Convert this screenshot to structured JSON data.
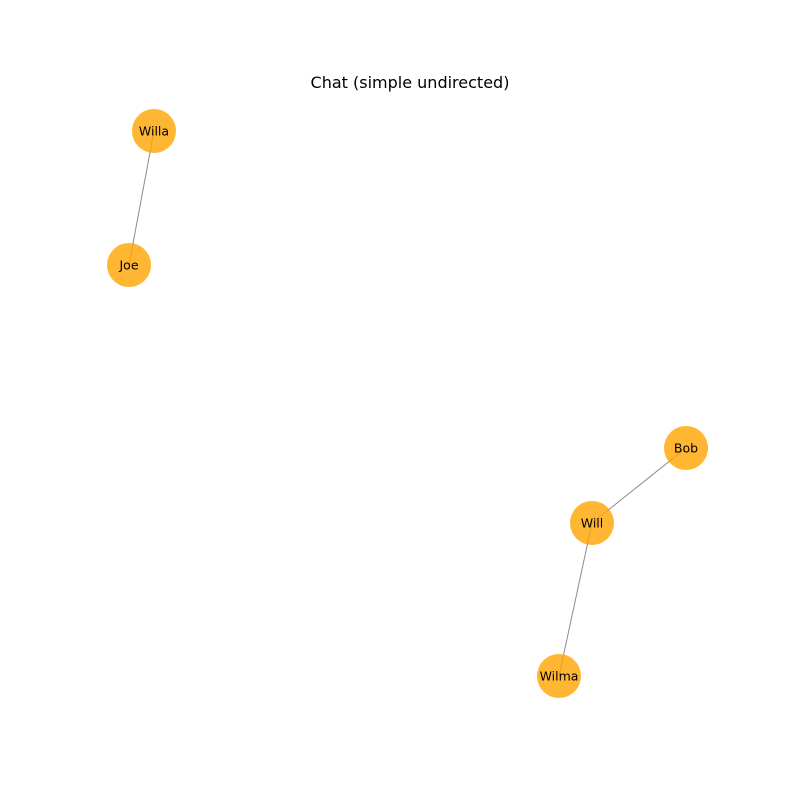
{
  "title": "Chat (simple undirected)",
  "colors": {
    "node": "#ffa500",
    "edge": "#808080",
    "text": "#000000"
  },
  "nodes": [
    {
      "id": "willa",
      "label": "Willa"
    },
    {
      "id": "joe",
      "label": "Joe"
    },
    {
      "id": "bob",
      "label": "Bob"
    },
    {
      "id": "will",
      "label": "Will"
    },
    {
      "id": "wilma",
      "label": "Wilma"
    }
  ],
  "edges": [
    {
      "source": "willa",
      "target": "joe"
    },
    {
      "source": "bob",
      "target": "will"
    },
    {
      "source": "will",
      "target": "wilma"
    }
  ]
}
